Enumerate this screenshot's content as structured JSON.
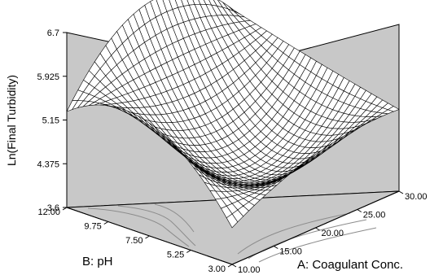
{
  "chart_data": {
    "type": "surface",
    "zlabel": "Ln(Final Turbidity)",
    "xlabel": "A: Coagulant Conc.",
    "ylabel": "B: pH",
    "x_ticks": [
      "10.00",
      "15.00",
      "20.00",
      "25.00",
      "30.00"
    ],
    "y_ticks": [
      "3.00",
      "5.25",
      "7.50",
      "9.75",
      "12.00"
    ],
    "z_ticks": [
      "3.6",
      "4.375",
      "5.15",
      "5.925",
      "6.7"
    ],
    "xlim": [
      10,
      30
    ],
    "ylim": [
      3,
      12
    ],
    "zlim": [
      3.6,
      6.7
    ],
    "surface_samples": {
      "x": [
        10,
        20,
        30
      ],
      "y": [
        3,
        7.5,
        12
      ],
      "z": [
        [
          4.25,
          5.6,
          5.3
        ],
        [
          4.9,
          4.3,
          6.6
        ],
        [
          5.05,
          5.4,
          5.8
        ]
      ]
    },
    "contour_projection": "floor",
    "grid": false
  },
  "colors": {
    "background": "#ffffff",
    "walls": "#c8c8c8",
    "floor": "#c8c8c8",
    "mesh_fill": "#ffffff",
    "mesh_line": "#000000",
    "contour": "#8c8c8c"
  }
}
